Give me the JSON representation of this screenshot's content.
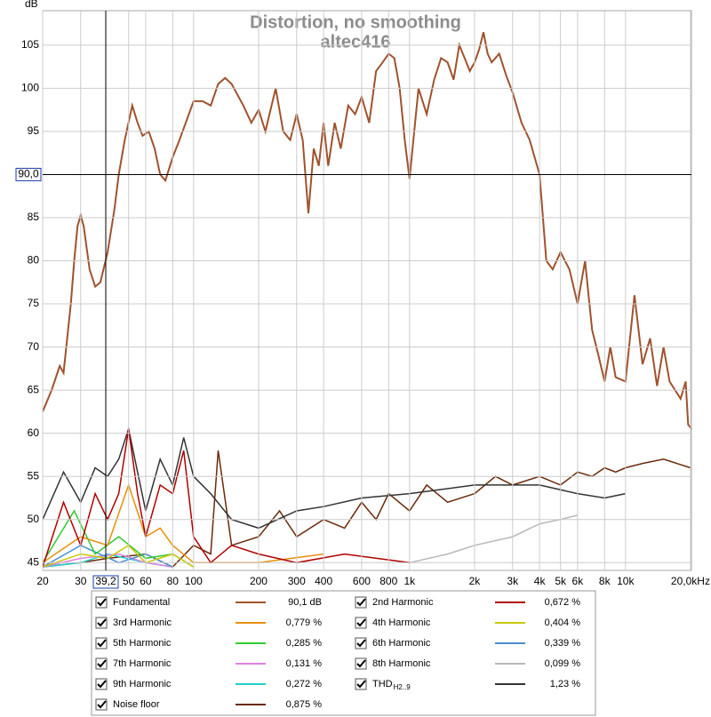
{
  "chart_data": {
    "type": "line",
    "title": "Distortion, no smoothing",
    "subtitle": "altec416",
    "y_label": "dB",
    "log_x": true,
    "grid": true,
    "xlim": [
      20,
      20200
    ],
    "ylim": [
      44.1,
      109
    ],
    "xticks": [
      20,
      30,
      50,
      60,
      80,
      100,
      200,
      300,
      400,
      600,
      800,
      {
        "value": 1000,
        "label": "1k"
      },
      {
        "value": 2000,
        "label": "2k"
      },
      {
        "value": 3000,
        "label": "3k"
      },
      {
        "value": 4000,
        "label": "4k"
      },
      {
        "value": 5000,
        "label": "5k"
      },
      {
        "value": 6000,
        "label": "6k"
      },
      {
        "value": 8000,
        "label": "8k"
      },
      {
        "value": 10000,
        "label": "10k"
      },
      {
        "value": 20000,
        "label": "20,0kHz"
      }
    ],
    "yticks": [
      45,
      50,
      55,
      60,
      65,
      70,
      75,
      80,
      85,
      95,
      100,
      105
    ],
    "cursor": {
      "x": {
        "value": 39.2,
        "label": "39,2"
      },
      "y": {
        "value": 90,
        "label": "90,0"
      }
    },
    "series": [
      {
        "name": "Fundamental",
        "color": "#a0522d",
        "legend_value": "90,1 dB",
        "x": [
          20,
          22,
          24,
          25,
          27,
          28,
          29,
          30,
          31,
          33,
          35,
          37,
          40,
          43,
          45,
          48,
          52,
          55,
          58,
          62,
          66,
          70,
          74,
          80,
          86,
          92,
          100,
          110,
          120,
          130,
          140,
          150,
          170,
          185,
          200,
          215,
          240,
          260,
          280,
          300,
          320,
          340,
          360,
          380,
          400,
          420,
          450,
          480,
          520,
          560,
          600,
          650,
          700,
          750,
          800,
          850,
          900,
          950,
          1000,
          1100,
          1200,
          1300,
          1400,
          1500,
          1600,
          1700,
          1800,
          1900,
          2000,
          2100,
          2200,
          2300,
          2400,
          2600,
          2800,
          3000,
          3300,
          3600,
          4000,
          4300,
          4600,
          5000,
          5500,
          6000,
          6500,
          7000,
          7500,
          8000,
          8500,
          9000,
          10000,
          11000,
          12000,
          13000,
          14000,
          15000,
          16000,
          18000,
          19000,
          19500,
          20200
        ],
        "values": [
          62.5,
          65,
          67.8,
          67,
          75,
          80,
          84,
          85.3,
          84,
          79,
          77,
          77.5,
          81,
          86,
          90,
          94,
          98,
          96,
          94.5,
          95,
          93,
          90,
          89.3,
          92,
          94,
          96,
          98.5,
          98.5,
          98,
          100.5,
          101.2,
          100.5,
          98,
          96,
          97.5,
          95,
          100,
          95,
          94,
          97,
          94,
          85.5,
          93,
          91,
          96,
          91,
          96,
          93,
          98,
          97,
          99,
          96,
          102,
          103,
          104,
          103.5,
          100,
          94,
          89.5,
          100,
          97,
          101,
          103.5,
          103,
          101,
          105,
          103.5,
          102,
          103,
          104.5,
          106.5,
          104,
          103,
          104,
          101.5,
          99.5,
          96,
          94,
          90,
          80,
          79,
          81,
          79,
          75,
          80,
          72,
          69,
          66,
          70,
          66.5,
          66,
          76,
          68,
          71,
          65.5,
          70,
          66,
          64,
          66,
          61,
          60.5
        ]
      },
      {
        "name": "2nd Harmonic",
        "color": "#b00000",
        "legend_value": "0,672 %",
        "x": [
          20,
          25,
          30,
          35,
          40,
          45,
          50,
          55,
          60,
          70,
          80,
          90,
          100,
          120,
          150,
          200,
          300,
          500,
          1000
        ],
        "values": [
          44.5,
          52,
          47,
          53,
          50,
          53,
          60.5,
          53,
          48,
          54,
          53,
          58,
          48,
          45,
          47,
          46,
          45,
          46,
          45
        ]
      },
      {
        "name": "3rd Harmonic",
        "color": "#e8900a",
        "legend_value": "0,779 %",
        "x": [
          20,
          30,
          40,
          50,
          60,
          70,
          80,
          100,
          200,
          400
        ],
        "values": [
          45,
          48,
          47,
          54,
          48,
          49,
          47,
          45,
          45,
          46
        ]
      },
      {
        "name": "4th Harmonic",
        "color": "#c8c800",
        "legend_value": "0,404 %",
        "x": [
          20,
          30,
          40,
          50,
          60,
          80,
          100
        ],
        "values": [
          44.5,
          46,
          45.5,
          47,
          45,
          46,
          44.5
        ]
      },
      {
        "name": "5th Harmonic",
        "color": "#2ecc2e",
        "legend_value": "0,285 %",
        "x": [
          20,
          28,
          35,
          45,
          60,
          80,
          100
        ],
        "values": [
          45,
          51,
          46,
          48,
          45.5,
          46,
          44.5
        ]
      },
      {
        "name": "6th Harmonic",
        "color": "#4a90d0",
        "legend_value": "0,339 %",
        "x": [
          20,
          30,
          45,
          60,
          80
        ],
        "values": [
          44.5,
          47,
          45,
          46,
          44.5
        ]
      },
      {
        "name": "7th Harmonic",
        "color": "#e080e0",
        "legend_value": "0,131 %",
        "x": [
          20,
          30,
          45,
          60,
          80
        ],
        "values": [
          44.5,
          45.5,
          46,
          45,
          44.5
        ]
      },
      {
        "name": "8th Harmonic",
        "color": "#b8b8b8",
        "legend_value": "0,099 %",
        "x": [
          1000,
          1500,
          2000,
          3000,
          4000,
          5000,
          6000
        ],
        "values": [
          45,
          46,
          47,
          48,
          49.5,
          50,
          50.5
        ]
      },
      {
        "name": "9th Harmonic",
        "color": "#20d0d0",
        "legend_value": "0,272 %",
        "x": [
          20,
          30,
          40,
          60,
          80
        ],
        "values": [
          44.5,
          45,
          46,
          45,
          44.5
        ]
      },
      {
        "name": "THD",
        "name_sub": "H2..9",
        "color": "#333333",
        "legend_value": "1,23 %",
        "x": [
          20,
          25,
          30,
          35,
          40,
          45,
          50,
          55,
          60,
          70,
          80,
          90,
          100,
          120,
          150,
          200,
          300,
          400,
          600,
          1000,
          2000,
          4000,
          6000,
          8000,
          10000
        ],
        "values": [
          50,
          55.5,
          52,
          56,
          55,
          57,
          60.5,
          55.5,
          51,
          57,
          54,
          59.5,
          55,
          53,
          50,
          49,
          51,
          51.5,
          52.5,
          53,
          54,
          54,
          53,
          52.5,
          53
        ]
      },
      {
        "name": "Noise floor",
        "color": "#6b2a0a",
        "legend_value": "0,875 %",
        "x": [
          20,
          30,
          40,
          60,
          80,
          100,
          120,
          130,
          150,
          200,
          250,
          300,
          400,
          500,
          600,
          700,
          800,
          1000,
          1200,
          1500,
          2000,
          2500,
          3000,
          4000,
          5000,
          6000,
          7000,
          8000,
          9000,
          10000,
          12000,
          15000,
          20000
        ],
        "values": [
          44.5,
          45,
          45.5,
          46,
          44.5,
          47,
          46,
          58,
          47,
          48,
          51,
          48,
          50,
          49,
          52,
          50,
          53,
          51,
          54,
          52,
          53,
          55,
          54,
          55,
          54,
          55.5,
          55,
          56,
          55.5,
          56,
          56.5,
          57,
          56
        ]
      }
    ]
  }
}
